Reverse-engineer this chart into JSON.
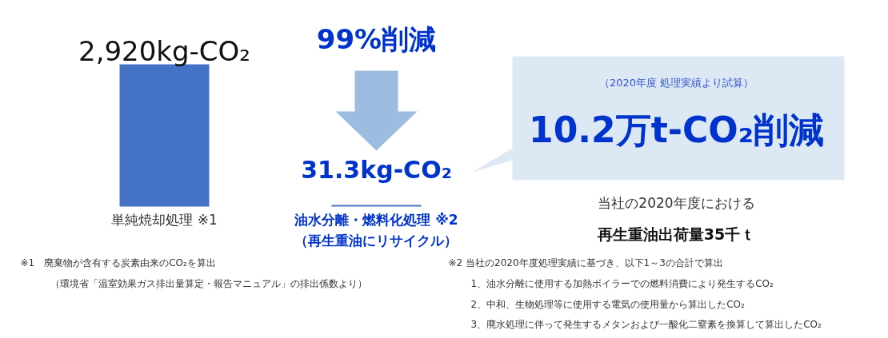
{
  "chart_data": {
    "type": "bar",
    "categories": [
      "単純焼却処理 ※1",
      "油水分離・燃料化処理 ※2\n（再生重油にリサイクル）"
    ],
    "values": [
      2920,
      31.3
    ],
    "colors": [
      "#4472c4",
      "#4472c4"
    ],
    "value_labels": [
      "2,920kg-CO₂",
      "31.3kg-CO₂"
    ],
    "annotations": [
      "99%削減",
      "（2020年度 処理実績より試算）",
      "10.2万t-CO₂削減",
      "当社の2020年度における",
      "再生重油出荷量35千ｔ",
      "※1　廃棄物が含有する炭素由来のCO₂を算出",
      "（環境省「温室効果ガス排出量算定・報告マニュアル」の排出係数より）",
      "※2  当社の2020年度処理実績に基づき、以下1～3の合計で算出",
      "1、油水分離に使用する加熱ボイラーでの燃料消費により発生するCO₂",
      "2、中和、生物処理等に使用する電気の使用量から算出したCO₂",
      "3、廃水処理に伴って発生するメタンおよび一酸化二窒素を換算して算出したCO₂"
    ]
  }
}
